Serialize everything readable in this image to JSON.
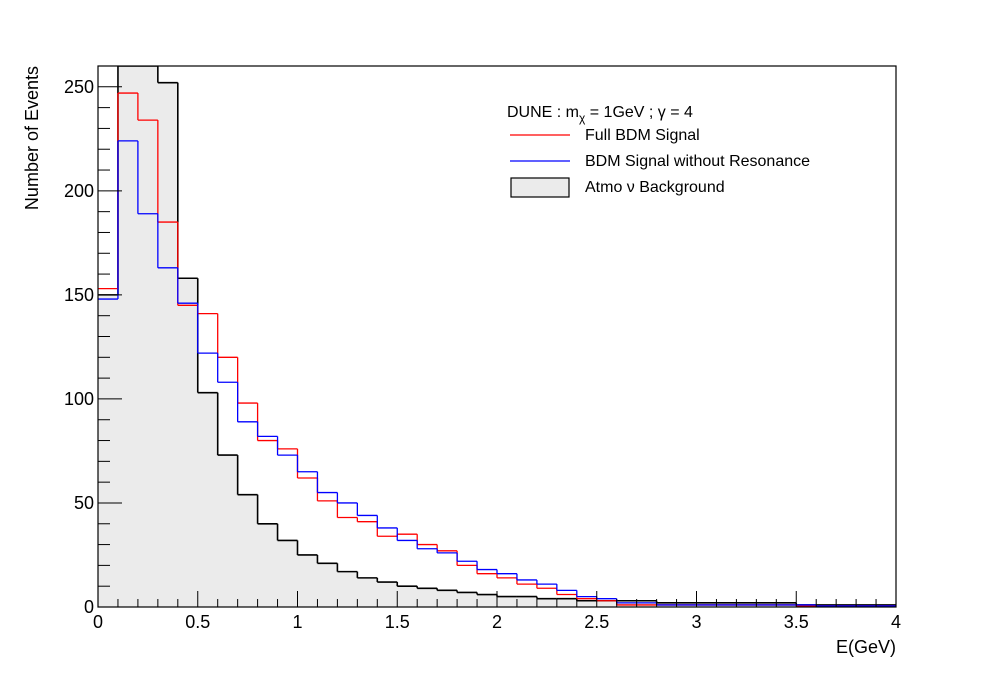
{
  "chart_data": {
    "type": "histogram",
    "title": "",
    "xlabel": "E(GeV)",
    "ylabel": "Number of Events",
    "xlim": [
      0,
      4
    ],
    "ylim": [
      0,
      260
    ],
    "grid": false,
    "bin_width": 0.1,
    "x_ticks": [
      0,
      0.5,
      1,
      1.5,
      2,
      2.5,
      3,
      3.5,
      4
    ],
    "x_tick_labels": [
      "0",
      "0.5",
      "1",
      "1.5",
      "2",
      "2.5",
      "3",
      "3.5",
      "4"
    ],
    "y_ticks": [
      0,
      50,
      100,
      150,
      200,
      250
    ],
    "y_tick_labels": [
      "0",
      "50",
      "100",
      "150",
      "200",
      "250"
    ],
    "legend": {
      "position": "top-right",
      "header_prefix": "DUNE :  m",
      "header_sub": "χ",
      "header_suffix": " = 1GeV  ; γ = 4",
      "entries": [
        "Full BDM Signal",
        "BDM Signal without Resonance",
        "Atmo ν  Background"
      ]
    },
    "series": [
      {
        "name": "Full BDM Signal",
        "color": "#ff0000",
        "values": [
          153,
          247,
          234,
          185,
          145,
          141,
          120,
          98,
          80,
          76,
          62,
          51,
          43,
          41,
          34,
          35,
          30,
          27,
          20,
          16,
          14,
          11,
          9,
          6,
          4,
          3,
          1,
          1,
          1,
          1,
          1,
          1,
          1,
          1,
          1,
          0.5,
          0.5,
          0.5,
          0.5,
          0.5
        ]
      },
      {
        "name": "BDM Signal without Resonance",
        "color": "#0000ff",
        "values": [
          148,
          224,
          189,
          163,
          146,
          122,
          108,
          89,
          82,
          73,
          65,
          55,
          50,
          44,
          38,
          32,
          28,
          26,
          22,
          18,
          16,
          13,
          11,
          8,
          5,
          4,
          2,
          2,
          1,
          1,
          1,
          1,
          1,
          1,
          1,
          1,
          0.5,
          0.5,
          0.5,
          0.5
        ]
      },
      {
        "name": "Atmo ν  Background",
        "color": "#000000",
        "fill": "#ebebeb",
        "values": [
          150,
          270,
          270,
          252,
          158,
          103,
          73,
          54,
          40,
          32,
          25,
          21,
          17,
          14,
          12,
          10,
          9,
          8,
          7,
          6,
          5,
          5,
          4,
          4,
          3,
          3,
          3,
          3,
          2,
          2,
          2,
          2,
          2,
          2,
          2,
          1,
          1,
          1,
          1,
          1
        ]
      }
    ]
  }
}
